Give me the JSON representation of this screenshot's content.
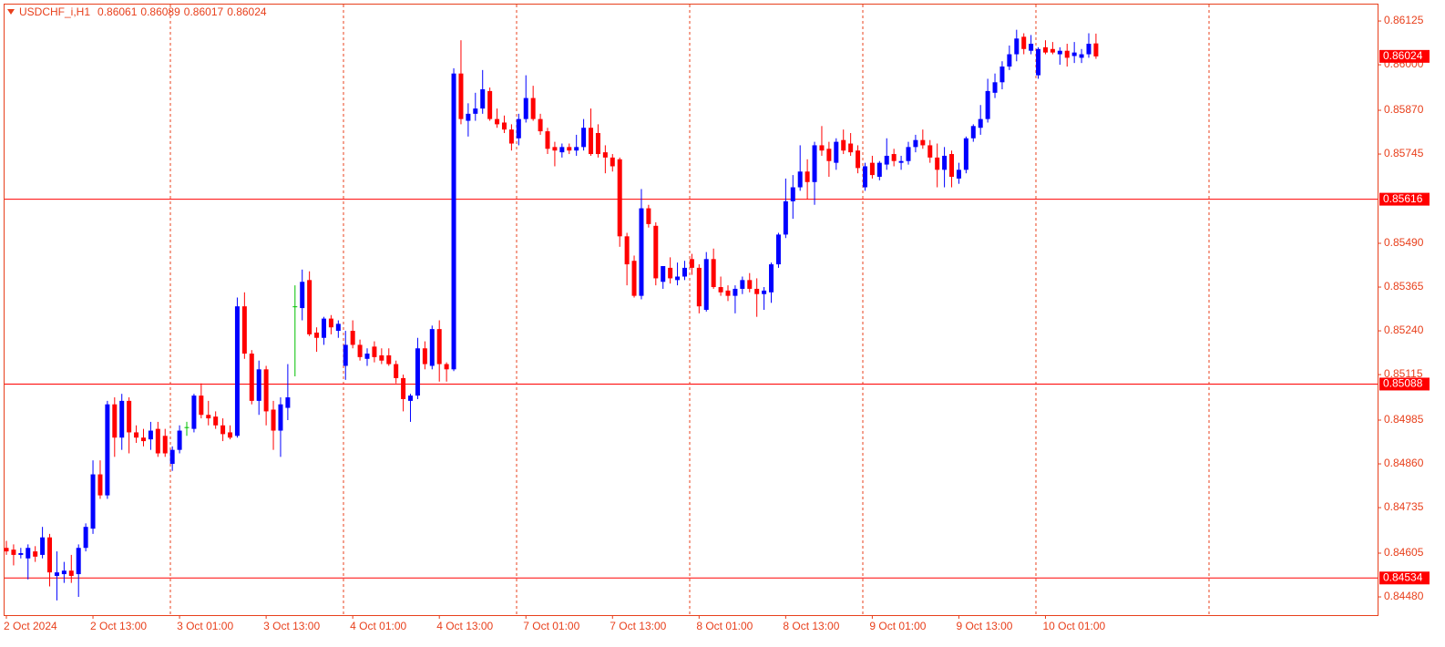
{
  "chart_data": {
    "type": "candlestick",
    "symbol": "USDCHF_i,H1",
    "up_color": "#0000ff",
    "down_color": "#ff0000",
    "doji_color": "#00c000",
    "hline_color": "#ff0000",
    "hlines": [
      0.85616,
      0.85088,
      0.84534
    ],
    "ylim": [
      0.84428,
      0.86172
    ],
    "yticks": [
      0.86125,
      {
        "value": 0.86,
        "label": "0.86000"
      },
      {
        "value": 0.8587,
        "label": "0.85870"
      },
      0.85745,
      {
        "value": 0.8549,
        "label": "0.85490"
      },
      0.85365,
      {
        "value": 0.8524,
        "label": "0.85240"
      },
      0.85115,
      0.84985,
      {
        "value": 0.8486,
        "label": "0.84860"
      },
      0.84735,
      0.84605,
      {
        "value": 0.8448,
        "label": "0.84480"
      }
    ],
    "categories": [
      "2 Oct 2024",
      null,
      null,
      null,
      null,
      null,
      null,
      null,
      null,
      null,
      null,
      null,
      "2 Oct 13:00",
      null,
      null,
      null,
      null,
      null,
      null,
      null,
      null,
      null,
      null,
      null,
      "3 Oct 01:00",
      null,
      null,
      null,
      null,
      null,
      null,
      null,
      null,
      null,
      null,
      null,
      "3 Oct 13:00",
      null,
      null,
      null,
      null,
      null,
      null,
      null,
      null,
      null,
      null,
      null,
      "4 Oct 01:00",
      null,
      null,
      null,
      null,
      null,
      null,
      null,
      null,
      null,
      null,
      null,
      "4 Oct 13:00",
      null,
      null,
      null,
      null,
      null,
      null,
      null,
      null,
      null,
      null,
      null,
      "7 Oct 01:00",
      null,
      null,
      null,
      null,
      null,
      null,
      null,
      null,
      null,
      null,
      null,
      "7 Oct 13:00",
      null,
      null,
      null,
      null,
      null,
      null,
      null,
      null,
      null,
      null,
      null,
      "8 Oct 01:00",
      null,
      null,
      null,
      null,
      null,
      null,
      null,
      null,
      null,
      null,
      null,
      "8 Oct 13:00",
      null,
      null,
      null,
      null,
      null,
      null,
      null,
      null,
      null,
      null,
      null,
      "9 Oct 01:00",
      null,
      null,
      null,
      null,
      null,
      null,
      null,
      null,
      null,
      null,
      null,
      "9 Oct 13:00",
      null,
      null,
      null,
      null,
      null,
      null,
      null,
      null,
      null,
      null,
      null,
      "10 Oct 01:00",
      null,
      null,
      null,
      null,
      null,
      null,
      null
    ],
    "open": [
      0.8462,
      0.84615,
      0.846,
      0.8459,
      0.8461,
      0.846,
      0.8465,
      0.8454,
      0.84545,
      0.84555,
      0.84545,
      0.8462,
      0.84675,
      0.8483,
      0.8477,
      0.8503,
      0.84935,
      0.8504,
      0.8495,
      0.84935,
      0.8493,
      0.8496,
      0.8494,
      0.8486,
      0.849,
      0.84965,
      0.8496,
      0.85055,
      0.85,
      0.84995,
      0.8497,
      0.8495,
      0.8494,
      0.8531,
      0.85175,
      0.8504,
      0.8513,
      0.85015,
      0.84955,
      0.8502,
      0.8531,
      0.85305,
      0.85385,
      0.85235,
      0.8522,
      0.85275,
      0.8524,
      0.8514,
      0.8524,
      0.852,
      0.8516,
      0.85195,
      0.8517,
      0.8517,
      0.85145,
      0.85105,
      0.8504,
      0.85055,
      0.8519,
      0.8514,
      0.85245,
      0.85145,
      0.8513,
      0.85975,
      0.8584,
      0.8586,
      0.85875,
      0.85925,
      0.85845,
      0.85835,
      0.85815,
      0.8579,
      0.85845,
      0.85905,
      0.85845,
      0.8581,
      0.85765,
      0.8575,
      0.85765,
      0.85755,
      0.85765,
      0.8582,
      0.85805,
      0.8575,
      0.85735,
      0.8573,
      0.8551,
      0.8544,
      0.8534,
      0.8559,
      0.8554,
      0.8538,
      0.8542,
      0.85385,
      0.85395,
      0.85445,
      0.8542,
      0.853,
      0.85445,
      0.85365,
      0.85355,
      0.8534,
      0.8536,
      0.85385,
      0.8536,
      0.85345,
      0.8535,
      0.8543,
      0.85515,
      0.8561,
      0.8565,
      0.85695,
      0.85665,
      0.8577,
      0.8576,
      0.8572,
      0.85785,
      0.85775,
      0.85755,
      0.8565,
      0.8572,
      0.8568,
      0.85715,
      0.85745,
      0.8572,
      0.85725,
      0.85765,
      0.85785,
      0.8577,
      0.85735,
      0.857,
      0.85745,
      0.85675,
      0.857,
      0.8579,
      0.8582,
      0.85845,
      0.8592,
      0.8595,
      0.85995,
      0.8603,
      0.8608,
      0.8604,
      0.8597,
      0.8605,
      0.86045,
      0.8603,
      0.8604,
      0.86025,
      0.8602,
      0.8603,
      0.86061
    ],
    "high": [
      0.8464,
      0.8463,
      0.8462,
      0.8463,
      0.84625,
      0.8468,
      0.8466,
      0.8461,
      0.8458,
      0.846,
      0.8463,
      0.8469,
      0.8487,
      0.8487,
      0.8504,
      0.8505,
      0.8506,
      0.8505,
      0.8497,
      0.8496,
      0.8498,
      0.8498,
      0.8496,
      0.8491,
      0.8497,
      0.8498,
      0.8506,
      0.8509,
      0.8504,
      0.8501,
      0.8499,
      0.8497,
      0.85335,
      0.8535,
      0.85185,
      0.85155,
      0.8514,
      0.8504,
      0.8505,
      0.85145,
      0.8537,
      0.85415,
      0.8541,
      0.8525,
      0.8528,
      0.85285,
      0.8527,
      0.8524,
      0.8527,
      0.85215,
      0.8519,
      0.8521,
      0.8519,
      0.8519,
      0.85155,
      0.85115,
      0.8506,
      0.8522,
      0.8521,
      0.85255,
      0.8527,
      0.8515,
      0.8599,
      0.8607,
      0.8589,
      0.8592,
      0.85985,
      0.85935,
      0.85875,
      0.85855,
      0.8583,
      0.8586,
      0.8597,
      0.8594,
      0.8586,
      0.8582,
      0.8578,
      0.85775,
      0.85775,
      0.858,
      0.85845,
      0.85875,
      0.8583,
      0.8577,
      0.85745,
      0.85735,
      0.8552,
      0.85455,
      0.85645,
      0.856,
      0.8555,
      0.85425,
      0.8545,
      0.85435,
      0.8544,
      0.8546,
      0.8543,
      0.85465,
      0.85475,
      0.85395,
      0.8537,
      0.8537,
      0.85395,
      0.85405,
      0.8539,
      0.85365,
      0.85435,
      0.8552,
      0.85675,
      0.85685,
      0.8577,
      0.8573,
      0.8578,
      0.85825,
      0.8578,
      0.8579,
      0.85815,
      0.85805,
      0.8577,
      0.8572,
      0.8574,
      0.85725,
      0.8579,
      0.8576,
      0.8574,
      0.8578,
      0.858,
      0.85815,
      0.85785,
      0.85775,
      0.85765,
      0.85755,
      0.8572,
      0.85795,
      0.8583,
      0.85885,
      0.8596,
      0.85975,
      0.8601,
      0.86055,
      0.861,
      0.8609,
      0.86085,
      0.8605,
      0.8607,
      0.86065,
      0.8605,
      0.8606,
      0.86065,
      0.86045,
      0.8609,
      0.86089
    ],
    "low": [
      0.846,
      0.8457,
      0.8459,
      0.8453,
      0.8458,
      0.8459,
      0.8451,
      0.8447,
      0.8452,
      0.8452,
      0.8448,
      0.8461,
      0.8466,
      0.8476,
      0.8476,
      0.8488,
      0.849,
      0.8489,
      0.8492,
      0.8491,
      0.849,
      0.8488,
      0.8488,
      0.8484,
      0.8489,
      0.8494,
      0.8495,
      0.8499,
      0.8497,
      0.8496,
      0.84925,
      0.8493,
      0.84935,
      0.8516,
      0.8503,
      0.85,
      0.8497,
      0.849,
      0.8488,
      0.84985,
      0.8511,
      0.8527,
      0.85225,
      0.8518,
      0.852,
      0.8523,
      0.8522,
      0.851,
      0.8519,
      0.85155,
      0.8514,
      0.8515,
      0.85145,
      0.8514,
      0.8509,
      0.8501,
      0.8498,
      0.85045,
      0.8513,
      0.8513,
      0.85095,
      0.85095,
      0.85125,
      0.8583,
      0.85795,
      0.8584,
      0.8586,
      0.8584,
      0.8582,
      0.85805,
      0.85755,
      0.8577,
      0.85835,
      0.8584,
      0.858,
      0.85745,
      0.8571,
      0.85735,
      0.85745,
      0.8574,
      0.85755,
      0.8574,
      0.85735,
      0.8569,
      0.85695,
      0.8548,
      0.8537,
      0.85335,
      0.8533,
      0.85535,
      0.8537,
      0.8536,
      0.85375,
      0.8537,
      0.85385,
      0.854,
      0.8529,
      0.85295,
      0.8536,
      0.8534,
      0.85325,
      0.8529,
      0.85345,
      0.8535,
      0.8528,
      0.853,
      0.8532,
      0.8542,
      0.85505,
      0.8556,
      0.8564,
      0.85615,
      0.856,
      0.8574,
      0.8568,
      0.857,
      0.85745,
      0.8574,
      0.8569,
      0.8564,
      0.85675,
      0.8567,
      0.857,
      0.8571,
      0.857,
      0.85715,
      0.8575,
      0.8576,
      0.8572,
      0.8565,
      0.8565,
      0.8565,
      0.8566,
      0.8569,
      0.8578,
      0.858,
      0.85835,
      0.85905,
      0.8593,
      0.85985,
      0.8601,
      0.8603,
      0.8603,
      0.8596,
      0.8603,
      0.8603,
      0.86,
      0.85995,
      0.86005,
      0.86005,
      0.8602,
      0.86017
    ],
    "close": [
      0.8461,
      0.846,
      0.84605,
      0.8462,
      0.84595,
      0.8465,
      0.8455,
      0.8455,
      0.84555,
      0.8454,
      0.8462,
      0.8468,
      0.8483,
      0.8477,
      0.8503,
      0.84935,
      0.8504,
      0.8495,
      0.84935,
      0.84925,
      0.84955,
      0.8489,
      0.8489,
      0.849,
      0.84955,
      0.84965,
      0.85055,
      0.85,
      0.8499,
      0.8497,
      0.84945,
      0.84935,
      0.8531,
      0.85175,
      0.8504,
      0.8513,
      0.8501,
      0.84955,
      0.8503,
      0.8505,
      0.8531,
      0.8538,
      0.8523,
      0.8522,
      0.85275,
      0.8525,
      0.8526,
      0.852,
      0.852,
      0.85165,
      0.85175,
      0.85165,
      0.85155,
      0.85145,
      0.85105,
      0.85045,
      0.85055,
      0.8519,
      0.85145,
      0.85245,
      0.85145,
      0.8513,
      0.85975,
      0.85845,
      0.8586,
      0.85875,
      0.8593,
      0.85845,
      0.8583,
      0.85815,
      0.85775,
      0.85845,
      0.85905,
      0.85845,
      0.8581,
      0.8576,
      0.85755,
      0.85765,
      0.85755,
      0.85765,
      0.8582,
      0.85745,
      0.85745,
      0.85735,
      0.8571,
      0.8551,
      0.8543,
      0.8534,
      0.8559,
      0.85545,
      0.8539,
      0.85425,
      0.8539,
      0.85395,
      0.8542,
      0.8542,
      0.8531,
      0.85445,
      0.85365,
      0.8535,
      0.8534,
      0.8536,
      0.85385,
      0.8536,
      0.85345,
      0.85355,
      0.8543,
      0.85515,
      0.8561,
      0.8565,
      0.85695,
      0.85665,
      0.8577,
      0.85755,
      0.85725,
      0.8578,
      0.85755,
      0.8575,
      0.85705,
      0.8571,
      0.85685,
      0.8572,
      0.8574,
      0.85725,
      0.85725,
      0.85765,
      0.85785,
      0.8577,
      0.85735,
      0.857,
      0.8574,
      0.8568,
      0.857,
      0.8579,
      0.85825,
      0.85845,
      0.85925,
      0.8595,
      0.85995,
      0.8603,
      0.86075,
      0.86045,
      0.8606,
      0.86045,
      0.86035,
      0.86035,
      0.8604,
      0.8602,
      0.86035,
      0.8603,
      0.8606,
      0.86024
    ]
  }
}
